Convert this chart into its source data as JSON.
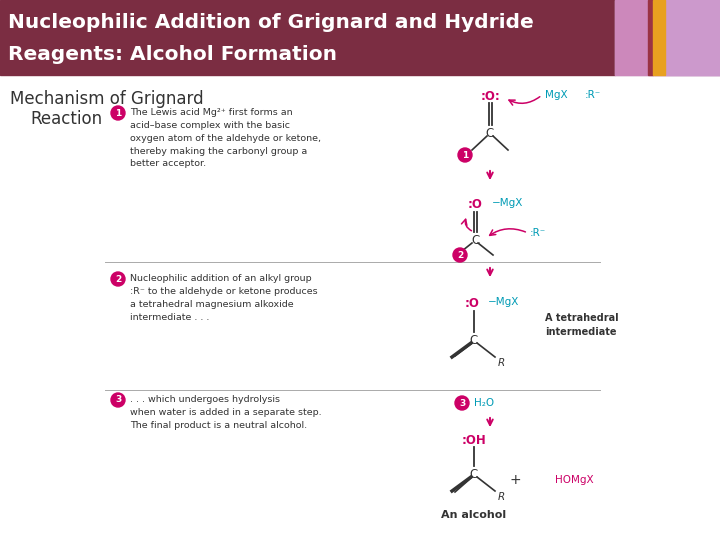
{
  "title_line1": "Nucleophilic Addition of Grignard and Hydride",
  "title_line2": "Reagents: Alcohol Formation",
  "title_bg_color": "#7B2D42",
  "title_text_color": "#FFFFFF",
  "bg_color": "#FFFFFF",
  "step1_text": "The Lewis acid Mg²⁺ first forms an\nacid–base complex with the basic\noxygen atom of the aldehyde or ketone,\nthereby making the carbonyl group a\nbetter acceptor.",
  "step2_text": "Nucleophilic addition of an alkyl group\n:R⁻ to the aldehyde or ketone produces\na tetrahedral magnesium alkoxide\nintermediate . . .",
  "step3_text": ". . . which undergoes hydrolysis\nwhen water is added in a separate step.\nThe final product is a neutral alcohol.",
  "pink_color": "#CC0066",
  "cyan_color": "#009BB5",
  "dark_color": "#333333",
  "annotation_tetrahedral": "A tetrahedral\nintermediate",
  "an_alcohol": "An alcohol",
  "flower_colors": [
    "#C8A0C0",
    "#D4B0CC",
    "#E8A020",
    "#8B3060",
    "#AA6090"
  ],
  "separator_color": "#AAAAAA"
}
